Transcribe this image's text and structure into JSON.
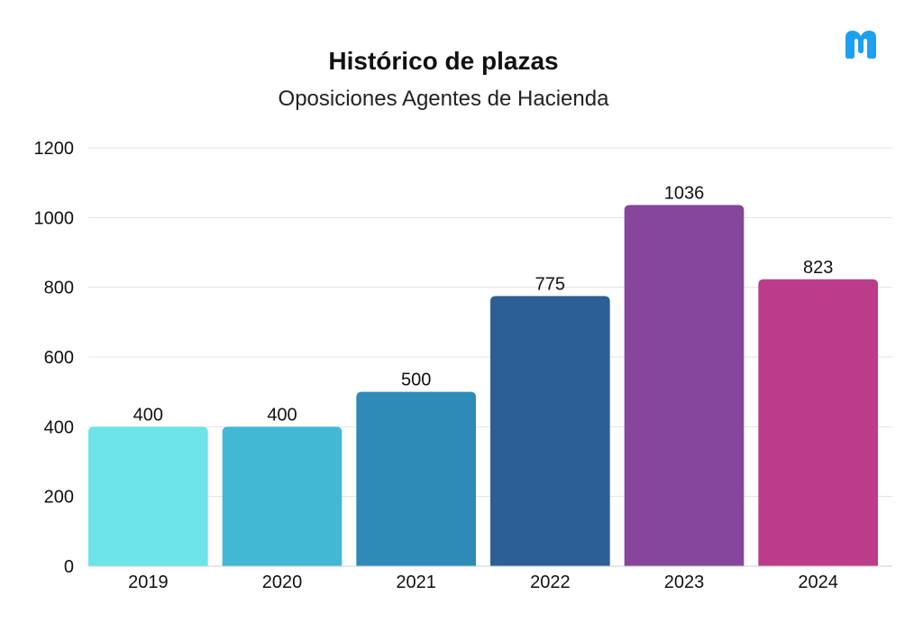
{
  "chart_data": {
    "type": "bar",
    "title": "Histórico de plazas",
    "subtitle": "Oposiciones Agentes de Hacienda",
    "xlabel": "",
    "ylabel": "",
    "categories": [
      "2019",
      "2020",
      "2021",
      "2022",
      "2023",
      "2024"
    ],
    "values": [
      400,
      400,
      500,
      775,
      1036,
      823
    ],
    "value_labels": [
      "400",
      "400",
      "500",
      "775",
      "1036",
      "823"
    ],
    "colors": [
      "#6de4e8",
      "#42b8d4",
      "#2e8bb8",
      "#2d5f97",
      "#85469b",
      "#bb3d89"
    ],
    "ylim": [
      0,
      1200
    ],
    "yticks": [
      "0",
      "200",
      "400",
      "600",
      "800",
      "1000",
      "1200"
    ],
    "grid": true,
    "legend": "none"
  },
  "logo": {
    "icon": "brand-m-logo",
    "color": "#1ea0f0"
  }
}
